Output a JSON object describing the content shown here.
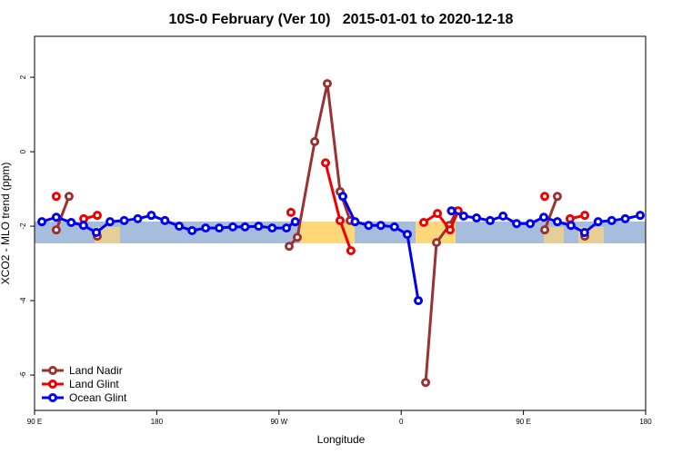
{
  "chart_data": {
    "type": "line",
    "title": "10S-0 February (Ver 10)   2015-01-01 to 2020-12-18",
    "x_label": "Longitude",
    "y_label": "XCO2 - MLO trend (ppm)",
    "xlim": [
      90,
      540
    ],
    "xticks": [
      {
        "value": 90,
        "label": "90 E"
      },
      {
        "value": 180,
        "label": "180"
      },
      {
        "value": 270,
        "label": "90 W"
      },
      {
        "value": 360,
        "label": "0"
      },
      {
        "value": 450,
        "label": "90 E"
      },
      {
        "value": 540,
        "label": "180"
      }
    ],
    "ylim": [
      -6.95,
      3.1
    ],
    "yticks": [
      -6,
      -4,
      -2,
      0,
      2
    ],
    "legend": "bottom-left",
    "series": [
      {
        "name": "Land Nadir",
        "color": "#993333",
        "x": [
          106,
          115.4,
          null,
          136.2,
          null,
          277.5,
          283.5,
          296.3,
          305.6,
          315,
          322.4,
          null,
          378,
          386,
          395.4,
          400.7,
          null,
          465.7,
          475,
          null,
          495.2
        ],
        "values": [
          -2.1,
          -1.2,
          null,
          -2.27,
          null,
          -2.54,
          -2.3,
          0.27,
          1.83,
          -1.07,
          -1.85,
          null,
          -6.2,
          -2.44,
          -1.98,
          -1.6,
          null,
          -2.1,
          -1.2,
          null,
          -2.27
        ]
      },
      {
        "name": "Land Glint",
        "color": "#ee0000",
        "x": [
          106,
          null,
          126.2,
          136.2,
          null,
          278.8,
          null,
          304.3,
          315,
          323,
          null,
          376.6,
          386.7,
          396,
          402,
          null,
          465.7,
          null,
          484.4,
          495.2
        ],
        "values": [
          -1.2,
          null,
          -1.8,
          -1.71,
          null,
          -1.63,
          null,
          -0.3,
          -1.85,
          -2.66,
          null,
          -1.9,
          -1.66,
          -2.1,
          -1.59,
          null,
          -1.2,
          null,
          -1.8,
          -1.71
        ]
      },
      {
        "name": "Ocean Glint",
        "color": "#0000ee",
        "x": [
          95.4,
          106,
          117,
          126,
          135.5,
          145.6,
          156,
          166,
          176,
          186,
          196.5,
          206,
          216,
          226,
          236,
          245,
          255,
          265,
          275.5,
          282,
          null,
          317,
          326,
          336,
          345,
          355,
          364.5,
          372.6,
          null,
          397,
          406,
          415.5,
          425.5,
          435,
          445,
          455,
          465,
          475,
          485,
          495,
          505,
          515,
          525,
          536
        ],
        "values": [
          -1.88,
          -1.76,
          -1.9,
          -1.98,
          -2.17,
          -1.88,
          -1.85,
          -1.8,
          -1.71,
          -1.85,
          -2.0,
          -2.12,
          -2.05,
          -2.05,
          -2.02,
          -2.02,
          -2.0,
          -2.05,
          -2.05,
          -1.88,
          null,
          -1.2,
          -1.88,
          -1.98,
          -1.98,
          -2.02,
          -2.22,
          -4.0,
          null,
          -1.59,
          -1.73,
          -1.78,
          -1.85,
          -1.73,
          -1.93,
          -1.93,
          -1.76,
          -1.88,
          -1.98,
          -2.17,
          -1.88,
          -1.85,
          -1.8,
          -1.71
        ]
      }
    ]
  }
}
